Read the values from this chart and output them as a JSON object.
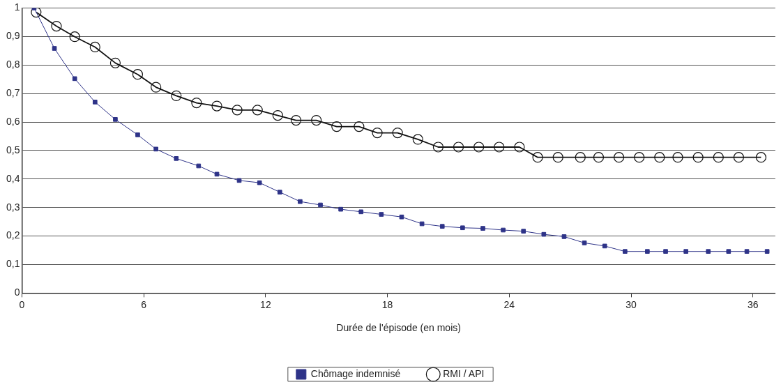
{
  "chart_data": {
    "type": "line",
    "xlabel": "Durée de l'épisode (en mois)",
    "xlim": [
      0,
      37.1
    ],
    "xticks": [
      0,
      6,
      12,
      18,
      24,
      30,
      36
    ],
    "ylim": [
      0,
      1
    ],
    "yticks": [
      {
        "value": 0,
        "label": "0"
      },
      {
        "value": 0.1,
        "label": "0,1"
      },
      {
        "value": 0.2,
        "label": "0,2"
      },
      {
        "value": 0.3,
        "label": "0,3"
      },
      {
        "value": 0.4,
        "label": "0,4"
      },
      {
        "value": 0.5,
        "label": "0,5"
      },
      {
        "value": 0.6,
        "label": "0,6"
      },
      {
        "value": 0.7,
        "label": "0,7"
      },
      {
        "value": 0.8,
        "label": "0,8"
      },
      {
        "value": 0.9,
        "label": "0,9"
      },
      {
        "value": 1,
        "label": "1"
      }
    ],
    "grid": "y",
    "legend": "bottom",
    "series": [
      {
        "name": "Chômage indemnisé",
        "color": "#2e3388",
        "marker": "square",
        "x": [
          0.6,
          1.6,
          2.6,
          3.6,
          4.6,
          5.7,
          6.6,
          7.6,
          8.7,
          9.6,
          10.7,
          11.7,
          12.7,
          13.7,
          14.7,
          15.7,
          16.7,
          17.7,
          18.7,
          19.7,
          20.7,
          21.7,
          22.7,
          23.7,
          24.7,
          25.7,
          26.7,
          27.7,
          28.7,
          29.7,
          30.8,
          31.7,
          32.7,
          33.8,
          34.8,
          35.7,
          36.7
        ],
        "values": [
          1.0,
          0.858,
          0.752,
          0.67,
          0.609,
          0.555,
          0.505,
          0.472,
          0.446,
          0.417,
          0.395,
          0.387,
          0.354,
          0.321,
          0.309,
          0.294,
          0.285,
          0.276,
          0.267,
          0.243,
          0.234,
          0.229,
          0.227,
          0.221,
          0.217,
          0.206,
          0.198,
          0.176,
          0.165,
          0.146,
          0.146,
          0.146,
          0.146,
          0.146,
          0.146,
          0.146,
          0.146
        ]
      },
      {
        "name": "RMI / API",
        "color": "#111111",
        "marker": "circle",
        "x": [
          0.7,
          1.7,
          2.6,
          3.6,
          4.6,
          5.7,
          6.6,
          7.6,
          8.6,
          9.6,
          10.6,
          11.6,
          12.6,
          13.5,
          14.5,
          15.5,
          16.6,
          17.5,
          18.5,
          19.5,
          20.5,
          21.5,
          22.5,
          23.5,
          24.5,
          25.4,
          26.4,
          27.5,
          28.4,
          29.4,
          30.4,
          31.4,
          32.3,
          33.3,
          34.3,
          35.3,
          36.4
        ],
        "values": [
          0.985,
          0.936,
          0.899,
          0.863,
          0.807,
          0.767,
          0.722,
          0.692,
          0.667,
          0.656,
          0.642,
          0.642,
          0.623,
          0.606,
          0.606,
          0.584,
          0.584,
          0.562,
          0.562,
          0.539,
          0.512,
          0.512,
          0.512,
          0.512,
          0.512,
          0.476,
          0.476,
          0.476,
          0.476,
          0.476,
          0.476,
          0.476,
          0.476,
          0.476,
          0.476,
          0.476,
          0.476
        ]
      }
    ]
  }
}
